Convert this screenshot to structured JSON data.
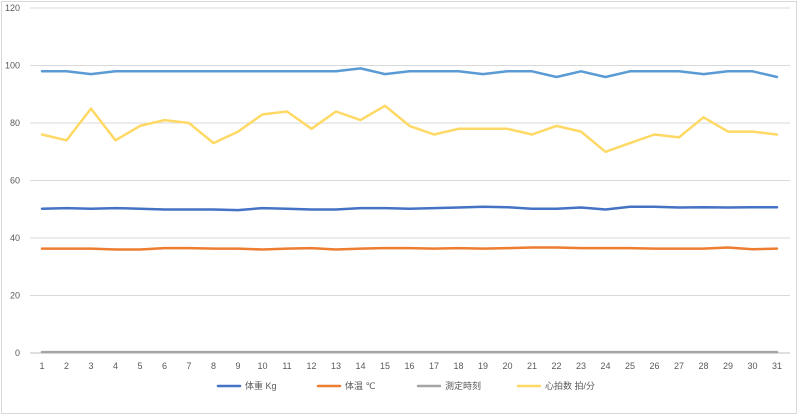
{
  "chart_data": {
    "type": "line",
    "title": "",
    "xlabel": "",
    "ylabel": "",
    "ylim": [
      0,
      120
    ],
    "yticks": [
      0,
      20,
      40,
      60,
      80,
      100,
      120
    ],
    "grid": "horizontal",
    "legend_position": "bottom",
    "categories": [
      1,
      2,
      3,
      4,
      5,
      6,
      7,
      8,
      9,
      10,
      11,
      12,
      13,
      14,
      15,
      16,
      17,
      18,
      19,
      20,
      21,
      22,
      23,
      24,
      25,
      26,
      27,
      28,
      29,
      30,
      31
    ],
    "series": [
      {
        "name": "体重 Kg",
        "color": "#4472c4",
        "values": [
          50.2,
          50.4,
          50.2,
          50.4,
          50.2,
          49.9,
          49.9,
          49.9,
          49.7,
          50.4,
          50.2,
          49.9,
          49.9,
          50.4,
          50.4,
          50.2,
          50.4,
          50.6,
          50.9,
          50.7,
          50.2,
          50.2,
          50.6,
          49.9,
          50.9,
          50.9,
          50.6,
          50.7,
          50.6,
          50.7,
          50.7
        ]
      },
      {
        "name": "体温 ℃",
        "color": "#ed7d31",
        "values": [
          36.3,
          36.3,
          36.3,
          36.0,
          36.0,
          36.5,
          36.5,
          36.3,
          36.3,
          36.0,
          36.3,
          36.5,
          36.0,
          36.3,
          36.5,
          36.5,
          36.3,
          36.5,
          36.3,
          36.5,
          36.7,
          36.7,
          36.5,
          36.5,
          36.5,
          36.3,
          36.3,
          36.3,
          36.7,
          36.1,
          36.3
        ]
      },
      {
        "name": "測定時刻",
        "color": "#a5a5a5",
        "values": [
          0.3,
          0.3,
          0.3,
          0.3,
          0.3,
          0.3,
          0.3,
          0.3,
          0.3,
          0.3,
          0.3,
          0.3,
          0.3,
          0.3,
          0.3,
          0.3,
          0.3,
          0.3,
          0.3,
          0.3,
          0.3,
          0.3,
          0.3,
          0.3,
          0.3,
          0.3,
          0.3,
          0.3,
          0.3,
          0.3,
          0.3
        ]
      },
      {
        "name": "心拍数 拍/分",
        "color": "#ffd966",
        "values": [
          76,
          74,
          85,
          74,
          79,
          81,
          80,
          73,
          77,
          83,
          84,
          78,
          84,
          81,
          86,
          79,
          76,
          78,
          78,
          78,
          76,
          79,
          77,
          70,
          73,
          76,
          75,
          82,
          77,
          77,
          76
        ]
      },
      {
        "name": "",
        "color": "#5b9bd5",
        "values": [
          98,
          98,
          97,
          98,
          98,
          98,
          98,
          98,
          98,
          98,
          98,
          98,
          98,
          99,
          97,
          98,
          98,
          98,
          97,
          98,
          98,
          96,
          98,
          96,
          98,
          98,
          98,
          97,
          98,
          98,
          96
        ]
      }
    ]
  }
}
